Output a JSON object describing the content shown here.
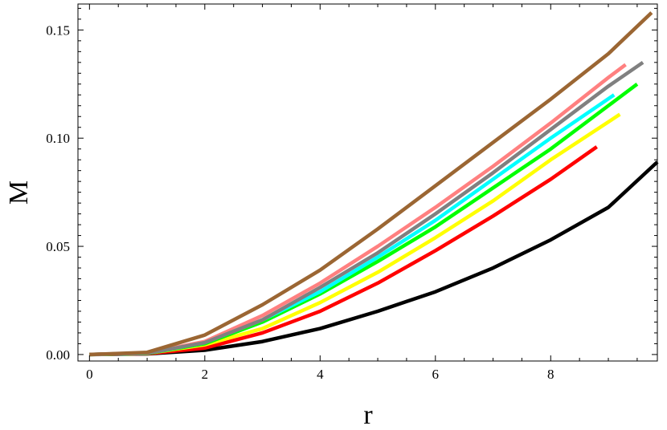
{
  "chart_data": {
    "type": "line",
    "title": "",
    "xlabel": "r",
    "ylabel": "M",
    "xlim": [
      -0.2,
      9.85
    ],
    "ylim": [
      -0.003,
      0.162
    ],
    "xticks": [
      0,
      2,
      4,
      6,
      8
    ],
    "xtick_labels": [
      "0",
      "2",
      "4",
      "6",
      "8"
    ],
    "yticks": [
      0.0,
      0.05,
      0.1,
      0.15
    ],
    "ytick_labels": [
      "0.00",
      "0.05",
      "0.10",
      "0.15"
    ],
    "grid": false,
    "legend": "none",
    "series": [
      {
        "color": "#000000",
        "x": [
          0,
          1,
          2,
          3,
          4,
          5,
          6,
          7,
          8,
          9,
          9.85
        ],
        "y": [
          0,
          0.0003,
          0.002,
          0.006,
          0.012,
          0.02,
          0.029,
          0.04,
          0.053,
          0.068,
          0.089
        ]
      },
      {
        "color": "#ff0000",
        "x": [
          0,
          1,
          2,
          3,
          4,
          5,
          6,
          7,
          8,
          8.8
        ],
        "y": [
          0,
          0.0004,
          0.003,
          0.01,
          0.02,
          0.033,
          0.048,
          0.064,
          0.081,
          0.096
        ]
      },
      {
        "color": "#ffff00",
        "x": [
          0,
          1,
          2,
          3,
          4,
          5,
          6,
          7,
          8,
          9.2
        ],
        "y": [
          0,
          0.0005,
          0.0045,
          0.012,
          0.024,
          0.038,
          0.054,
          0.071,
          0.09,
          0.111
        ]
      },
      {
        "color": "#00ff00",
        "x": [
          0,
          1,
          2,
          3,
          4,
          5,
          6,
          7,
          8,
          9,
          9.5
        ],
        "y": [
          0,
          0.0005,
          0.005,
          0.015,
          0.028,
          0.043,
          0.059,
          0.077,
          0.095,
          0.115,
          0.125
        ]
      },
      {
        "color": "#00ffff",
        "x": [
          0,
          1,
          2,
          3,
          4,
          5,
          6,
          7,
          8,
          9.1
        ],
        "y": [
          0,
          0.0006,
          0.0055,
          0.016,
          0.029,
          0.045,
          0.062,
          0.081,
          0.1,
          0.12
        ]
      },
      {
        "color": "#ff8080",
        "x": [
          0,
          1,
          2,
          3,
          4,
          5,
          6,
          7,
          8,
          9,
          9.3
        ],
        "y": [
          0,
          0.0007,
          0.006,
          0.018,
          0.033,
          0.05,
          0.068,
          0.087,
          0.107,
          0.128,
          0.134
        ]
      },
      {
        "color": "#808080",
        "x": [
          0,
          1,
          2,
          3,
          4,
          5,
          6,
          7,
          8,
          9,
          9.6
        ],
        "y": [
          0,
          0.0006,
          0.0055,
          0.016,
          0.031,
          0.047,
          0.065,
          0.084,
          0.104,
          0.124,
          0.135
        ]
      },
      {
        "color": "#9b6633",
        "x": [
          0,
          1,
          2,
          3,
          4,
          5,
          6,
          7,
          8,
          9,
          9.75
        ],
        "y": [
          0,
          0.001,
          0.009,
          0.023,
          0.039,
          0.058,
          0.078,
          0.098,
          0.118,
          0.139,
          0.158
        ]
      }
    ]
  }
}
